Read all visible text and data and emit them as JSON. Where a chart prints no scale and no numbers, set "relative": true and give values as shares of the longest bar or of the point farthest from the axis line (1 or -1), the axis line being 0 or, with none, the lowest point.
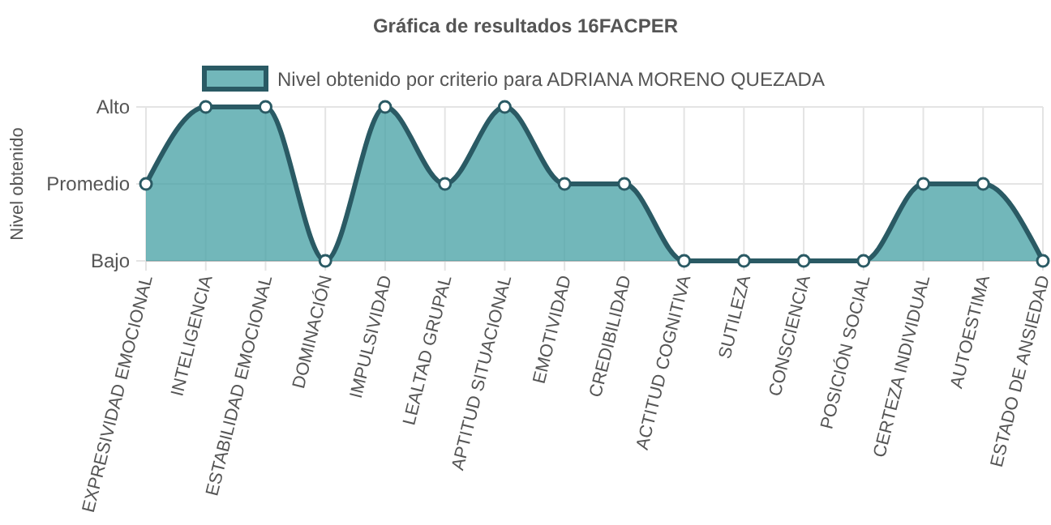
{
  "chart_data": {
    "type": "area",
    "title": "Gráfica de resultados 16FACPER",
    "ylabel": "Nivel obtenido",
    "categories": [
      "EXPRESIVIDAD EMOCIONAL",
      "INTELIGENCIA",
      "ESTABILIDAD EMOCIONAL",
      "DOMINACIÓN",
      "IMPULSIVIDAD",
      "LEALTAD GRUPAL",
      "APTITUD SITUACIONAL",
      "EMOTIVIDAD",
      "CREDIBILIDAD",
      "ACTITUD COGNITIVA",
      "SUTILEZA",
      "CONSCIENCIA",
      "POSICIÓN SOCIAL",
      "CERTEZA INDIVIDUAL",
      "AUTOESTIMA",
      "ESTADO DE ANSIEDAD"
    ],
    "y_categories": [
      "Alto",
      "Promedio",
      "Bajo"
    ],
    "relative": true,
    "series": [
      {
        "name": "Nivel obtenido por criterio para ADRIANA MORENO QUEZADA",
        "color": "#2a5a64",
        "values": [
          0.5,
          1,
          1,
          0,
          1,
          0.5,
          1,
          0.5,
          0.5,
          0,
          0,
          0,
          0,
          0.5,
          0.5,
          0
        ]
      }
    ],
    "grid": true,
    "legend": "top",
    "marker": "circle"
  }
}
